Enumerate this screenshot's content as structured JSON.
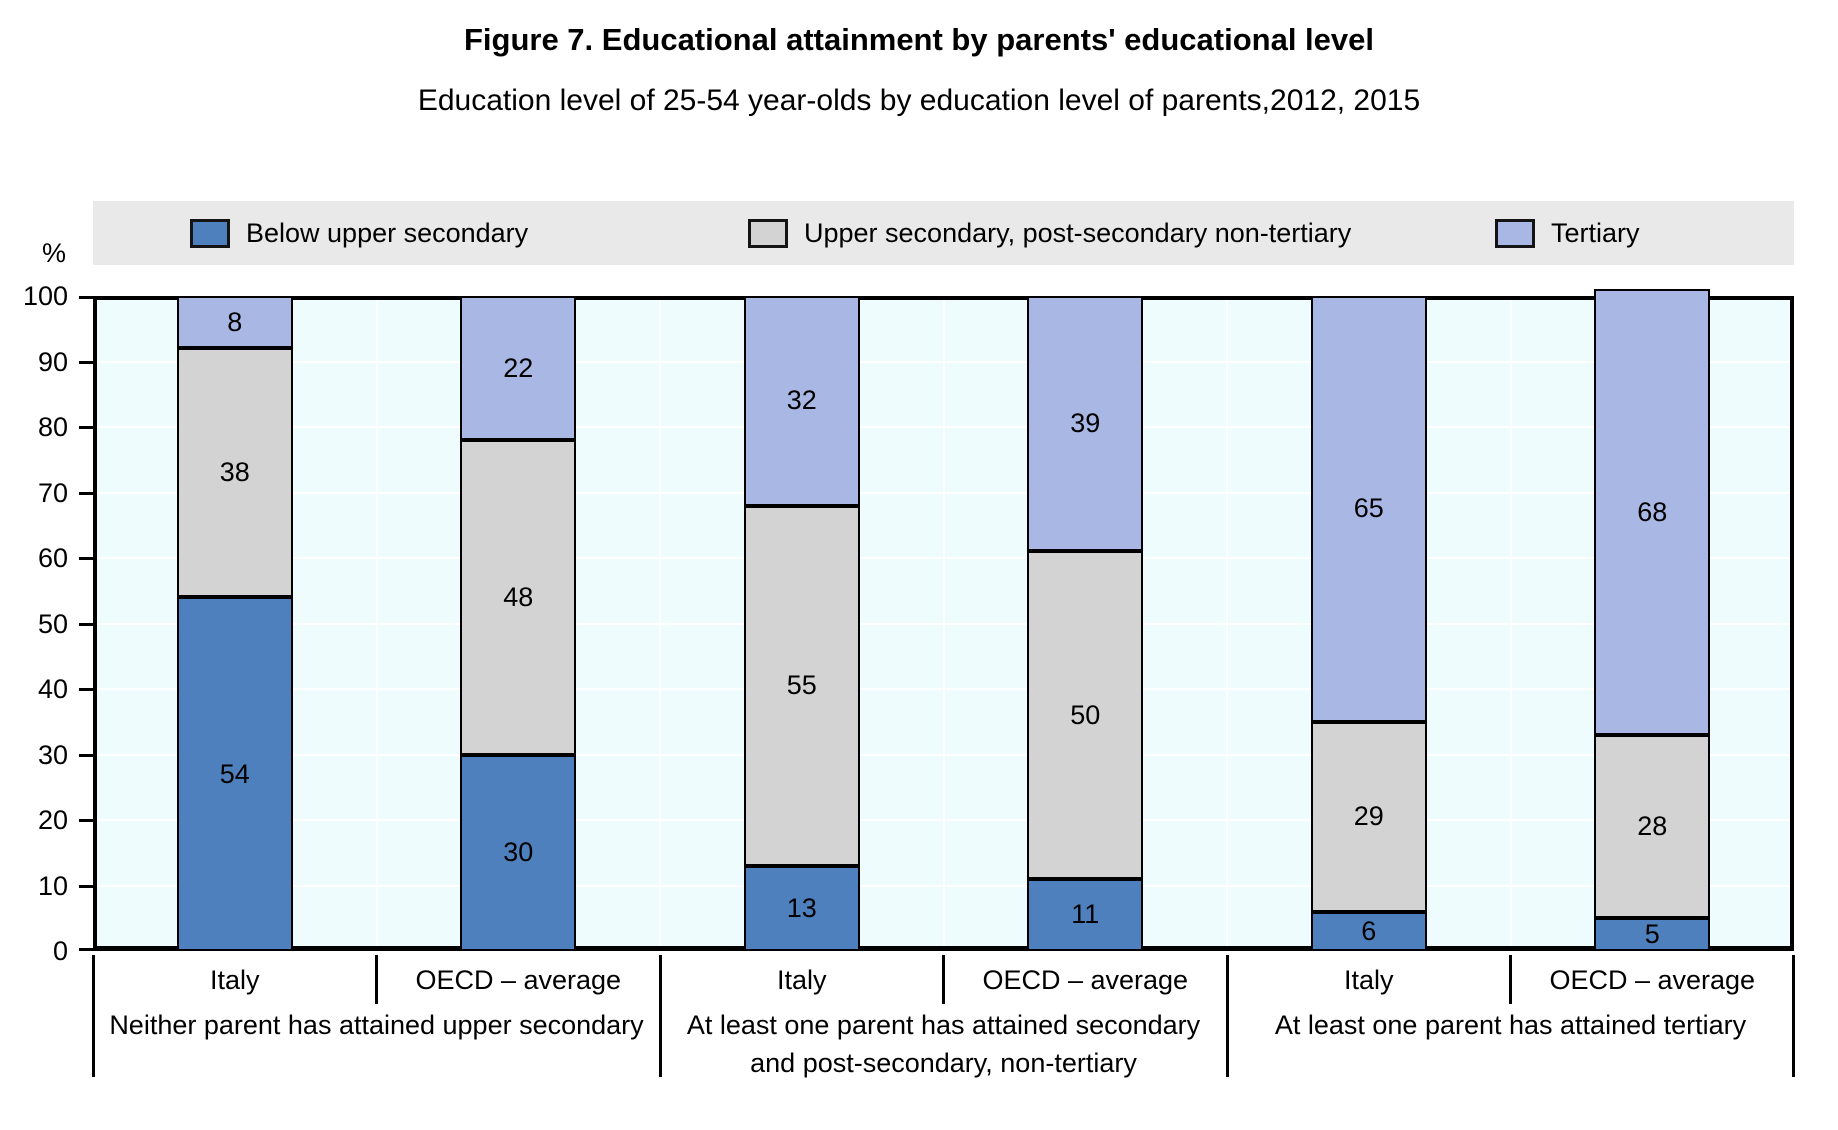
{
  "figure": {
    "title": "Figure 7. Educational attainment by parents' educational level",
    "subtitle": "Education level of 25-54 year-olds by education level of parents,2012, 2015"
  },
  "colors": {
    "below_upper_secondary": "#4E80BD",
    "upper_secondary": "#D3D3D3",
    "tertiary": "#A8B7E3",
    "plot_background": "#EEFCFD",
    "legend_background": "#E9E9E9",
    "gridline": "#FFFFFF",
    "border": "#000000"
  },
  "chart_data": {
    "type": "bar",
    "stacked": true,
    "unit": "%",
    "ylim": [
      0,
      100
    ],
    "ytick_step": 10,
    "yticks": [
      0,
      10,
      20,
      30,
      40,
      50,
      60,
      70,
      80,
      90,
      100
    ],
    "grid": true,
    "legend_position": "top",
    "series": [
      {
        "name": "Below upper secondary",
        "color": "#4E80BD"
      },
      {
        "name": "Upper secondary, post-secondary non-tertiary",
        "color": "#D3D3D3"
      },
      {
        "name": "Tertiary",
        "color": "#A8B7E3"
      }
    ],
    "groups": [
      {
        "label": "Neither parent has attained upper secondary",
        "bars": [
          {
            "category": "Italy",
            "values": [
              54,
              38,
              8
            ]
          },
          {
            "category": "OECD – average",
            "values": [
              30,
              48,
              22
            ]
          }
        ]
      },
      {
        "label": "At least one parent has attained secondary and post-secondary, non-tertiary",
        "bars": [
          {
            "category": "Italy",
            "values": [
              13,
              55,
              32
            ]
          },
          {
            "category": "OECD – average",
            "values": [
              11,
              50,
              39
            ]
          }
        ]
      },
      {
        "label": "At least one parent has attained tertiary",
        "bars": [
          {
            "category": "Italy",
            "values": [
              6,
              29,
              65
            ]
          },
          {
            "category": "OECD – average",
            "values": [
              5,
              28,
              68
            ]
          }
        ]
      }
    ]
  }
}
